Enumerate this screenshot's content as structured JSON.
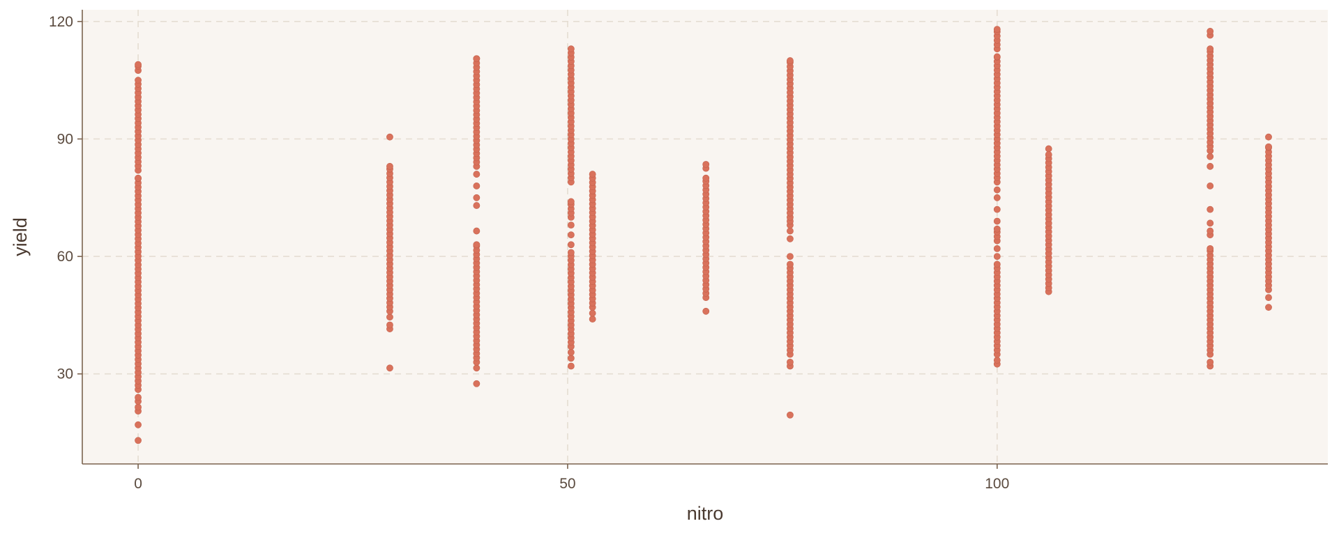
{
  "chart_data": {
    "type": "scatter",
    "title": "",
    "xlabel": "nitro",
    "ylabel": "yield",
    "xlim": [
      -6.5,
      138.5
    ],
    "ylim": [
      7,
      123
    ],
    "x_ticks": [
      0,
      50,
      100
    ],
    "y_ticks": [
      30,
      60,
      90,
      120
    ],
    "grid": true,
    "legend": "none",
    "point_color": "#d9725c",
    "panel_color": "#f9f5f1",
    "columns": [
      {
        "x": 0,
        "points": [
          13,
          17,
          20.5,
          21.5,
          23,
          24
        ],
        "dense": [
          [
            26,
            80
          ],
          [
            82,
            105
          ],
          [
            107.5,
            109
          ]
        ]
      },
      {
        "x": 29.3,
        "points": [
          31.5,
          41.5,
          42.5,
          44.5,
          90.5
        ],
        "dense": [
          [
            46,
            83
          ]
        ]
      },
      {
        "x": 39.4,
        "points": [
          27.5,
          31.5,
          66.5,
          73,
          75,
          78,
          81
        ],
        "dense": [
          [
            33,
            63
          ],
          [
            83,
            110.5
          ]
        ]
      },
      {
        "x": 50.4,
        "points": [
          32,
          34,
          35.5,
          63,
          65.5,
          68
        ],
        "dense": [
          [
            37,
            61
          ],
          [
            70,
            74
          ],
          [
            79,
            113
          ]
        ]
      },
      {
        "x": 52.9,
        "points": [
          44,
          45.5
        ],
        "dense": [
          [
            47,
            81
          ]
        ]
      },
      {
        "x": 66.1,
        "points": [
          46
        ],
        "dense": [
          [
            49.5,
            80
          ],
          [
            82.5,
            83.5
          ]
        ]
      },
      {
        "x": 75.9,
        "points": [
          19.5,
          32,
          33,
          60,
          64.5,
          66.5,
          68,
          69
        ],
        "dense": [
          [
            35,
            58
          ],
          [
            70,
            110
          ]
        ]
      },
      {
        "x": 100.0,
        "points": [
          32.5,
          33.5,
          60,
          62,
          69,
          72,
          75,
          77
        ],
        "dense": [
          [
            35,
            58
          ],
          [
            64,
            67
          ],
          [
            79,
            111
          ],
          [
            113,
            118
          ]
        ]
      },
      {
        "x": 106.0,
        "points": [
          51,
          87.5
        ],
        "dense": [
          [
            52,
            86
          ]
        ]
      },
      {
        "x": 124.8,
        "points": [
          32,
          33,
          65.5,
          66.5,
          68.5,
          72,
          78,
          83,
          85.5
        ],
        "dense": [
          [
            35,
            62
          ],
          [
            87,
            113
          ],
          [
            116.5,
            117.5
          ]
        ]
      },
      {
        "x": 131.6,
        "points": [
          47,
          49.5,
          90.5
        ],
        "dense": [
          [
            51.5,
            88
          ]
        ]
      }
    ]
  }
}
